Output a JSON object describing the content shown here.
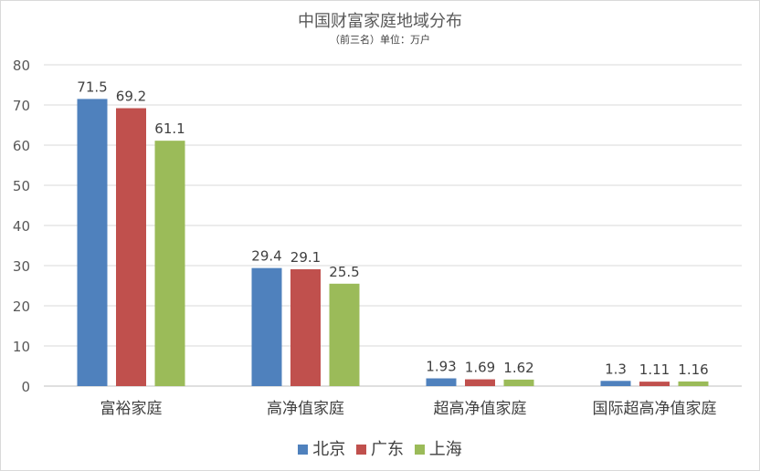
{
  "chart_data": {
    "type": "bar",
    "title": "中国财富家庭地域分布",
    "subtitle": "（前三名）单位：万户",
    "categories": [
      "富裕家庭",
      "高净值家庭",
      "超高净值家庭",
      "国际超高净值家庭"
    ],
    "series": [
      {
        "name": "北京",
        "color": "#4f81bd",
        "values": [
          71.5,
          29.4,
          1.93,
          1.3
        ]
      },
      {
        "name": "广东",
        "color": "#c0504d",
        "values": [
          69.2,
          29.1,
          1.69,
          1.11
        ]
      },
      {
        "name": "上海",
        "color": "#9bbb59",
        "values": [
          61.1,
          25.5,
          1.62,
          1.16
        ]
      }
    ],
    "value_labels": [
      [
        "71.5",
        "29.4",
        "1.93",
        "1.3"
      ],
      [
        "69.2",
        "29.1",
        "1.69",
        "1.11"
      ],
      [
        "61.1",
        "25.5",
        "1.62",
        "1.16"
      ]
    ],
    "ylim": [
      0,
      80
    ],
    "yticks": [
      "0",
      "10",
      "20",
      "30",
      "40",
      "50",
      "60",
      "70",
      "80"
    ],
    "grid": true,
    "legend_position": "bottom"
  }
}
